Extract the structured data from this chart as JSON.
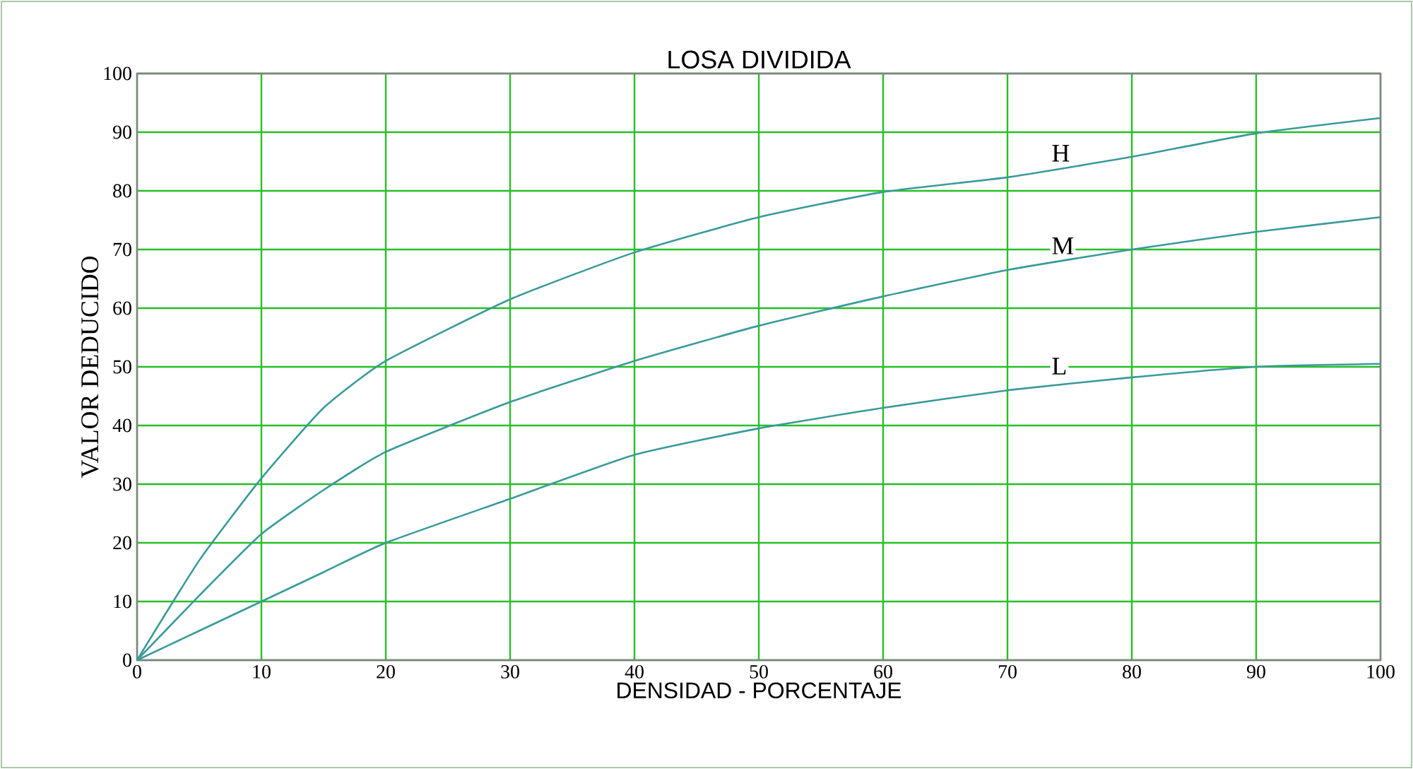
{
  "chart_data": {
    "type": "line",
    "title": "LOSA DIVIDIDA",
    "xlabel": "DENSIDAD - PORCENTAJE",
    "ylabel": "VALOR DEDUCIDO",
    "x": [
      0,
      5,
      10,
      15,
      20,
      30,
      40,
      50,
      60,
      70,
      80,
      90,
      100
    ],
    "series": [
      {
        "name": "H",
        "color": "#3a9a9a",
        "values": [
          0,
          17,
          31,
          43,
          51,
          61.5,
          69.5,
          75.5,
          79.8,
          82.3,
          85.8,
          89.8,
          92.4
        ]
      },
      {
        "name": "M",
        "color": "#3a9a9a",
        "values": [
          0,
          11,
          21.5,
          29,
          35.5,
          44,
          51,
          57,
          62,
          66.5,
          70,
          73,
          75.5
        ]
      },
      {
        "name": "L",
        "color": "#3a9a9a",
        "values": [
          0,
          5,
          10,
          15,
          20,
          27.5,
          35,
          39.5,
          43,
          46,
          48.2,
          50,
          50.5
        ]
      }
    ],
    "xlim": [
      0,
      100
    ],
    "ylim": [
      0,
      100
    ],
    "xticks": [
      0,
      10,
      20,
      30,
      40,
      50,
      60,
      70,
      80,
      90,
      100
    ],
    "yticks": [
      0,
      10,
      20,
      30,
      40,
      50,
      60,
      70,
      80,
      90,
      100
    ],
    "grid": true,
    "legend": false,
    "marker": "none",
    "line_style": "solid"
  }
}
